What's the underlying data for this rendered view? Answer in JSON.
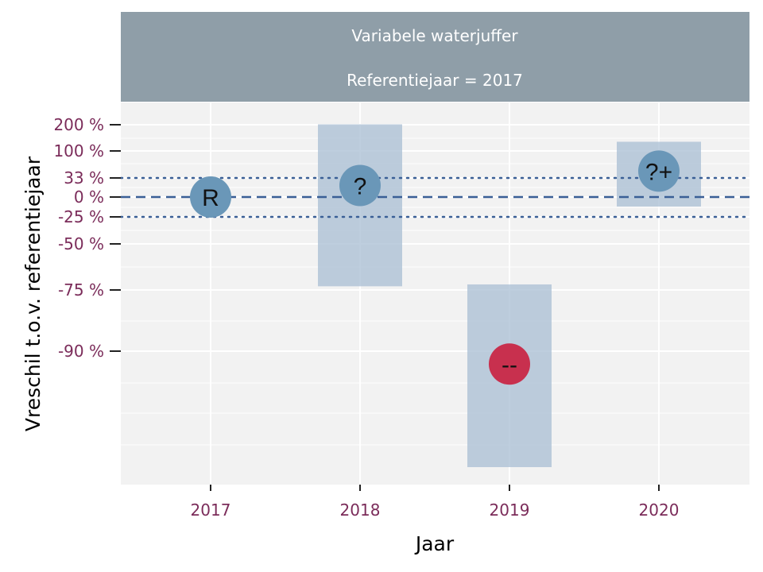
{
  "facet": {
    "title": "Variabele waterjuffer",
    "subtitle": "Referentiejaar = 2017"
  },
  "colors": {
    "strip": "#8f9ea8",
    "panel": "#f2f2f2",
    "grid": "#ffffff",
    "reference_line": "#3a5f96",
    "interval": "#a8bdd3",
    "point_unknown": "#6a97b8",
    "point_decrease": "#c8304e",
    "tick_label": "#7b2c5a"
  },
  "chart_data": {
    "type": "scatter",
    "title": "Variabele waterjuffer",
    "subtitle": "Referentiejaar = 2017",
    "xlabel": "Jaar",
    "ylabel": "Vreschil t.o.v. referentiejaar",
    "x_ticks": [
      "2017",
      "2018",
      "2019",
      "2020"
    ],
    "y_ticks": [
      {
        "label": "200 %",
        "value": 200
      },
      {
        "label": "100 %",
        "value": 100
      },
      {
        "label": "33 %",
        "value": 33
      },
      {
        "label": "0 %",
        "value": 0
      },
      {
        "label": "-25 %",
        "value": -25
      },
      {
        "label": "-50 %",
        "value": -50
      },
      {
        "label": "-75 %",
        "value": -75
      },
      {
        "label": "-90 %",
        "value": -90
      }
    ],
    "y_scale": "log ratio (percent change)",
    "reference_line": 0,
    "threshold_lines": [
      33,
      -25
    ],
    "points": [
      {
        "year": "2017",
        "estimate": 0,
        "lower": null,
        "upper": null,
        "label": "R",
        "color": "#6a97b8"
      },
      {
        "year": "2018",
        "estimate": 20,
        "lower": -73,
        "upper": 210,
        "label": "?",
        "color": "#6a97b8"
      },
      {
        "year": "2019",
        "estimate": -91,
        "lower": -99,
        "upper": -72,
        "label": "--",
        "color": "#c8304e"
      },
      {
        "year": "2020",
        "estimate": 50,
        "lower": -12,
        "upper": 135,
        "label": "?+",
        "color": "#6a97b8"
      }
    ],
    "grid": true
  }
}
